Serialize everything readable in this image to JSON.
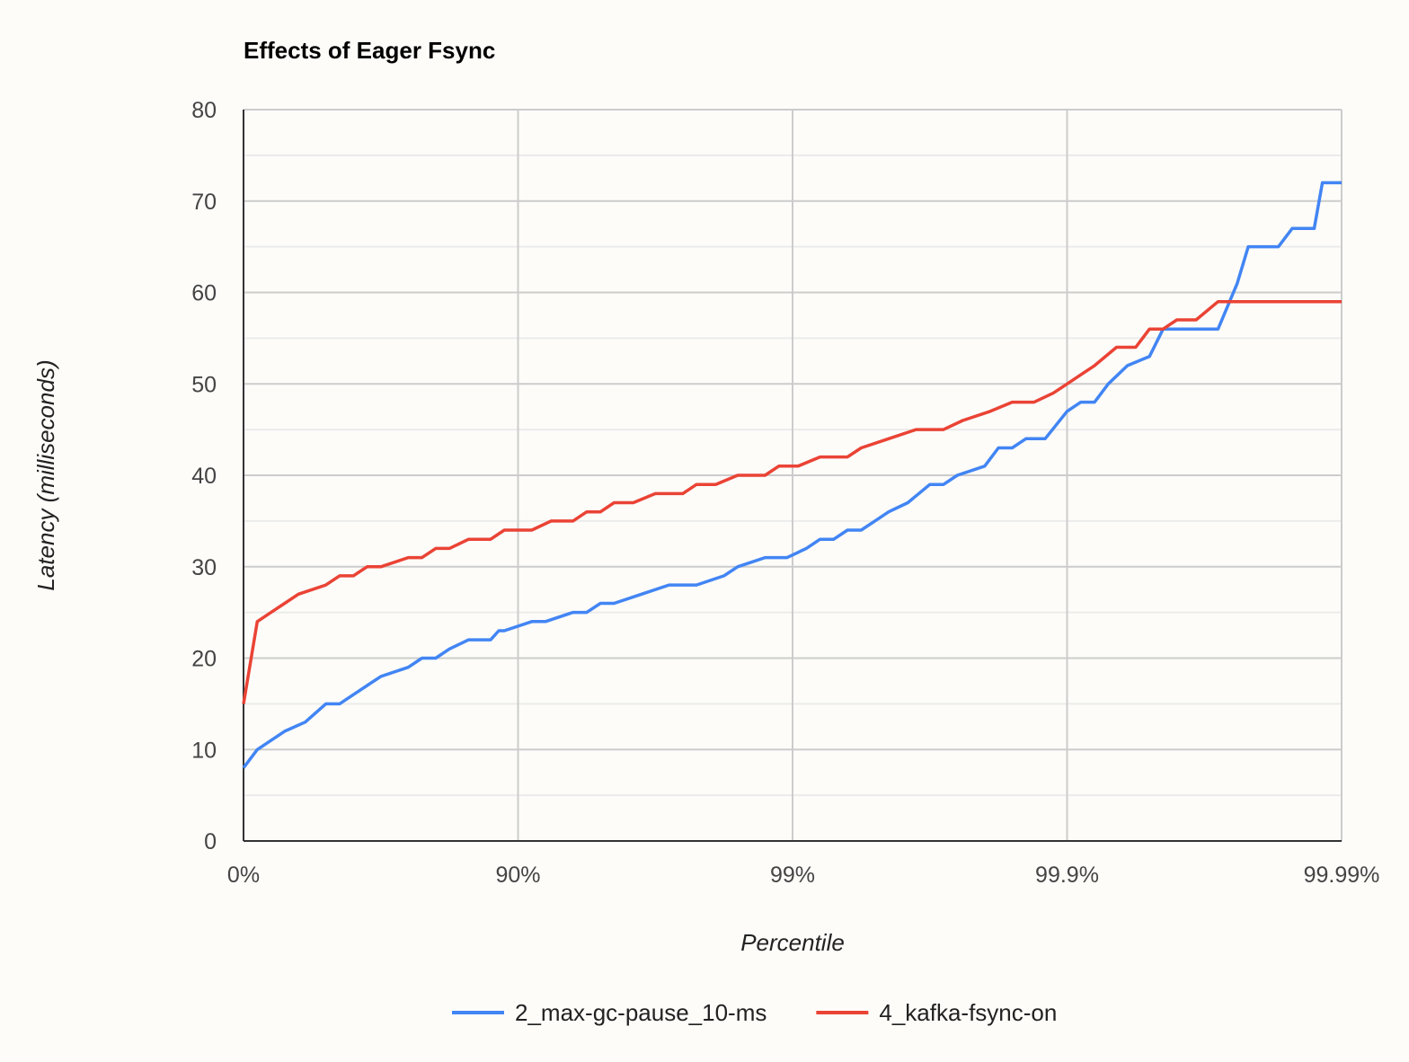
{
  "chart_data": {
    "type": "line",
    "title": "Effects of Eager Fsync",
    "xlabel": "Percentile",
    "ylabel": "Latency (milliseconds)",
    "x_tick_labels": [
      "0%",
      "90%",
      "99%",
      "99.9%",
      "99.99%"
    ],
    "y_ticks": [
      0,
      10,
      20,
      30,
      40,
      50,
      60,
      70,
      80
    ],
    "ylim": [
      0,
      80
    ],
    "x_scale": "log-percentile",
    "grid": true,
    "legend_position": "bottom",
    "series": [
      {
        "name": "2_max-gc-pause_10-ms",
        "color": "#4285f4",
        "points": [
          [
            0,
            8
          ],
          [
            0.05,
            10
          ],
          [
            0.1,
            11
          ],
          [
            0.15,
            12
          ],
          [
            0.225,
            13
          ],
          [
            0.3,
            15
          ],
          [
            0.35,
            15
          ],
          [
            0.4,
            16
          ],
          [
            0.45,
            17
          ],
          [
            0.5,
            18
          ],
          [
            0.6,
            19
          ],
          [
            0.65,
            20
          ],
          [
            0.7,
            20
          ],
          [
            0.75,
            21
          ],
          [
            0.82,
            22
          ],
          [
            0.9,
            22
          ],
          [
            0.93,
            23
          ],
          [
            0.95,
            23
          ],
          [
            1.05,
            24
          ],
          [
            1.1,
            24
          ],
          [
            1.2,
            25
          ],
          [
            1.25,
            25
          ],
          [
            1.3,
            26
          ],
          [
            1.35,
            26
          ],
          [
            1.45,
            27
          ],
          [
            1.55,
            28
          ],
          [
            1.65,
            28
          ],
          [
            1.75,
            29
          ],
          [
            1.8,
            30
          ],
          [
            1.9,
            31
          ],
          [
            1.98,
            31
          ],
          [
            2.05,
            32
          ],
          [
            2.1,
            33
          ],
          [
            2.15,
            33
          ],
          [
            2.2,
            34
          ],
          [
            2.25,
            34
          ],
          [
            2.3,
            35
          ],
          [
            2.35,
            36
          ],
          [
            2.42,
            37
          ],
          [
            2.5,
            39
          ],
          [
            2.55,
            39
          ],
          [
            2.6,
            40
          ],
          [
            2.7,
            41
          ],
          [
            2.75,
            43
          ],
          [
            2.8,
            43
          ],
          [
            2.85,
            44
          ],
          [
            2.92,
            44
          ],
          [
            3.0,
            47
          ],
          [
            3.05,
            48
          ],
          [
            3.1,
            48
          ],
          [
            3.15,
            50
          ],
          [
            3.22,
            52
          ],
          [
            3.3,
            53
          ],
          [
            3.35,
            56
          ],
          [
            3.55,
            56
          ],
          [
            3.62,
            61
          ],
          [
            3.66,
            65
          ],
          [
            3.77,
            65
          ],
          [
            3.82,
            67
          ],
          [
            3.9,
            67
          ],
          [
            3.93,
            72
          ],
          [
            4.0,
            72
          ]
        ]
      },
      {
        "name": "4_kafka-fsync-on",
        "color": "#ea4335",
        "points": [
          [
            0,
            15
          ],
          [
            0.05,
            24
          ],
          [
            0.1,
            25
          ],
          [
            0.15,
            26
          ],
          [
            0.2,
            27
          ],
          [
            0.3,
            28
          ],
          [
            0.35,
            29
          ],
          [
            0.4,
            29
          ],
          [
            0.45,
            30
          ],
          [
            0.5,
            30
          ],
          [
            0.6,
            31
          ],
          [
            0.65,
            31
          ],
          [
            0.7,
            32
          ],
          [
            0.75,
            32
          ],
          [
            0.82,
            33
          ],
          [
            0.9,
            33
          ],
          [
            0.95,
            34
          ],
          [
            1.05,
            34
          ],
          [
            1.12,
            35
          ],
          [
            1.2,
            35
          ],
          [
            1.25,
            36
          ],
          [
            1.3,
            36
          ],
          [
            1.35,
            37
          ],
          [
            1.42,
            37
          ],
          [
            1.5,
            38
          ],
          [
            1.6,
            38
          ],
          [
            1.65,
            39
          ],
          [
            1.72,
            39
          ],
          [
            1.8,
            40
          ],
          [
            1.9,
            40
          ],
          [
            1.95,
            41
          ],
          [
            2.02,
            41
          ],
          [
            2.1,
            42
          ],
          [
            2.2,
            42
          ],
          [
            2.25,
            43
          ],
          [
            2.35,
            44
          ],
          [
            2.45,
            45
          ],
          [
            2.55,
            45
          ],
          [
            2.62,
            46
          ],
          [
            2.72,
            47
          ],
          [
            2.8,
            48
          ],
          [
            2.88,
            48
          ],
          [
            2.95,
            49
          ],
          [
            3.0,
            50
          ],
          [
            3.05,
            51
          ],
          [
            3.1,
            52
          ],
          [
            3.18,
            54
          ],
          [
            3.25,
            54
          ],
          [
            3.3,
            56
          ],
          [
            3.35,
            56
          ],
          [
            3.4,
            57
          ],
          [
            3.47,
            57
          ],
          [
            3.55,
            59
          ],
          [
            4.0,
            59
          ]
        ]
      }
    ]
  }
}
